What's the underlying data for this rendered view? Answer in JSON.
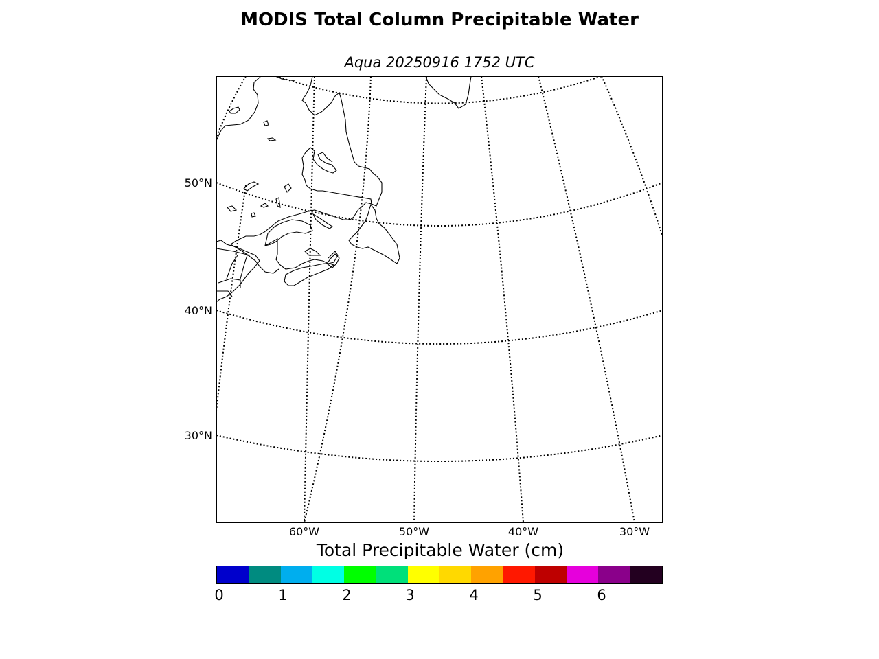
{
  "title": "MODIS Total Column Precipitable Water",
  "subtitle": "Aqua 20250916 1752 UTC",
  "map": {
    "projection": "conic",
    "lat_labels": [
      "50°N",
      "40°N",
      "30°N"
    ],
    "lon_labels": [
      "60°W",
      "50°W",
      "40°W",
      "30°W"
    ],
    "gridlines": "dotted",
    "coastlines": true,
    "region": "Northwest Atlantic / Atlantic Canada"
  },
  "colorbar": {
    "label": "Total Precipitable Water (cm)",
    "ticks": [
      "0",
      "1",
      "2",
      "3",
      "4",
      "5",
      "6"
    ],
    "colors": [
      "#0000cc",
      "#008b80",
      "#00aeee",
      "#00ffe4",
      "#00ff00",
      "#00e07a",
      "#ffff00",
      "#ffd900",
      "#ffa200",
      "#ff1800",
      "#be0000",
      "#e600dc",
      "#8a008a",
      "#230020"
    ],
    "range": [
      0,
      7
    ]
  }
}
